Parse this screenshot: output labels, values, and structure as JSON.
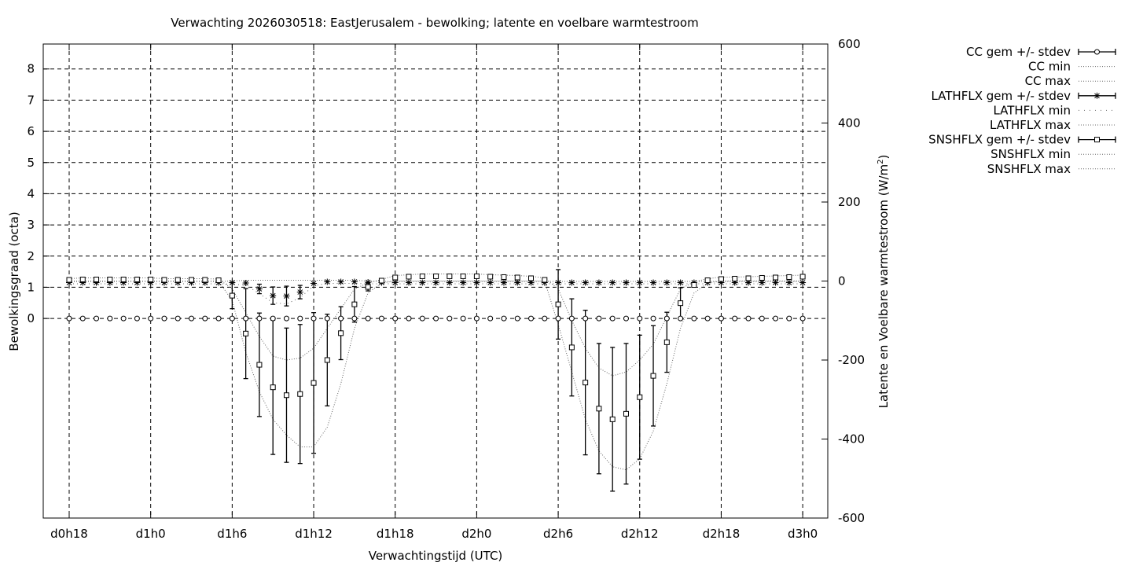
{
  "chart_data": {
    "type": "line",
    "title": "Verwachting 2026030518: EastJerusalem - bewolking; latente en voelbare warmtestroom",
    "xlabel": "Verwachtingstijd (UTC)",
    "ylabel": "Bewolkingsgraad (octa)",
    "y2label_main": "Latente en Voelbare warmtestroom (W/m",
    "y2label_sup": "2",
    "y2label_tail": ")",
    "x_ticks": [
      {
        "h": 0,
        "label": "d0h18"
      },
      {
        "h": 6,
        "label": "d1h0"
      },
      {
        "h": 12,
        "label": "d1h6"
      },
      {
        "h": 18,
        "label": "d1h12"
      },
      {
        "h": 24,
        "label": "d1h18"
      },
      {
        "h": 30,
        "label": "d2h0"
      },
      {
        "h": 36,
        "label": "d2h6"
      },
      {
        "h": 42,
        "label": "d2h12"
      },
      {
        "h": 48,
        "label": "d2h18"
      },
      {
        "h": 54,
        "label": "d3h0"
      }
    ],
    "y_ticks": [
      "0",
      "1",
      "2",
      "3",
      "4",
      "5",
      "6",
      "7",
      "8"
    ],
    "y2_ticks": [
      "-600",
      "-400",
      "-200",
      "0",
      "200",
      "400",
      "600"
    ],
    "ylim": [
      -6.4,
      8.8
    ],
    "y2lim": [
      -600,
      600
    ],
    "x_hours": [
      0,
      1,
      2,
      3,
      4,
      5,
      6,
      7,
      8,
      9,
      10,
      11,
      12,
      13,
      14,
      15,
      16,
      17,
      18,
      19,
      20,
      21,
      22,
      23,
      24,
      25,
      26,
      27,
      28,
      29,
      30,
      31,
      32,
      33,
      34,
      35,
      36,
      37,
      38,
      39,
      40,
      41,
      42,
      43,
      44,
      45,
      46,
      47,
      48,
      49,
      50,
      51,
      52,
      53,
      54
    ],
    "grid": true,
    "legend_position": "outside right, top",
    "legend": [
      {
        "label": "CC gem +/- stdev",
        "style": "errorbar-circle"
      },
      {
        "label": "CC min",
        "style": "dotted"
      },
      {
        "label": "CC max",
        "style": "dotted"
      },
      {
        "label": "LATHFLX gem +/- stdev",
        "style": "errorbar-star"
      },
      {
        "label": "LATHFLX min",
        "style": "dotted-sparse"
      },
      {
        "label": "LATHFLX max",
        "style": "dotted"
      },
      {
        "label": "SNSHFLX gem +/- stdev",
        "style": "errorbar-square"
      },
      {
        "label": "SNSHFLX min",
        "style": "dotted"
      },
      {
        "label": "SNSHFLX max",
        "style": "dotted"
      }
    ],
    "series": [
      {
        "name": "CC gem +/- stdev",
        "axis": "y1",
        "values": [
          0,
          0,
          0,
          0,
          0,
          0,
          0,
          0,
          0,
          0,
          0,
          0,
          0,
          0,
          0,
          0,
          0,
          0,
          0,
          0,
          0,
          0,
          0,
          0,
          0,
          0,
          0,
          0,
          0,
          0,
          0,
          0,
          0,
          0,
          0,
          0,
          0,
          0,
          0,
          0,
          0,
          0,
          0,
          0,
          0,
          0,
          0,
          0,
          0,
          0,
          0,
          0,
          0,
          0,
          0
        ]
      },
      {
        "name": "LATHFLX gem +/- stdev",
        "axis": "y2",
        "mean": [
          -4,
          -4,
          -4,
          -4,
          -4,
          -4,
          -4,
          -4,
          -4,
          -4,
          -4,
          -4,
          -4,
          -5,
          -20,
          -37,
          -38,
          -28,
          -6,
          -2,
          -2,
          -2,
          -3,
          -4,
          -4,
          -4,
          -4,
          -4,
          -4,
          -4,
          -4,
          -4,
          -4,
          -4,
          -4,
          -4,
          -4,
          -4,
          -4,
          -4,
          -4,
          -4,
          -4,
          -4,
          -4,
          -4,
          -4,
          -4,
          -4,
          -4,
          -4,
          -4,
          -4,
          -4,
          -4
        ],
        "stdev": [
          0,
          0,
          0,
          0,
          0,
          0,
          0,
          0,
          0,
          0,
          0,
          0,
          0,
          0,
          12,
          22,
          25,
          17,
          0,
          0,
          0,
          0,
          0,
          0,
          0,
          0,
          0,
          0,
          0,
          0,
          0,
          0,
          0,
          0,
          0,
          0,
          0,
          0,
          0,
          0,
          0,
          0,
          0,
          0,
          0,
          0,
          0,
          0,
          0,
          0,
          0,
          0,
          0,
          0,
          0
        ]
      },
      {
        "name": "LATHFLX min",
        "axis": "y2",
        "values": [
          -7,
          -7,
          -7,
          -7,
          -7,
          -7,
          -7,
          -7,
          -7,
          -7,
          -7,
          -7,
          -8,
          -10,
          -32,
          -55,
          -58,
          -42,
          -12,
          -6,
          -6,
          -6,
          -7,
          -7,
          -7,
          -7,
          -7,
          -7,
          -7,
          -7,
          -7,
          -7,
          -7,
          -7,
          -7,
          -7,
          -7,
          -7,
          -7,
          -7,
          -7,
          -7,
          -7,
          -7,
          -7,
          -7,
          -7,
          -7,
          -7,
          -7,
          -7,
          -7,
          -7,
          -7,
          -7
        ]
      },
      {
        "name": "LATHFLX max",
        "axis": "y2",
        "values": [
          -1,
          -1,
          -1,
          -1,
          -1,
          -1,
          -1,
          -1,
          -1,
          -1,
          -1,
          -1,
          0,
          2,
          2,
          2,
          2,
          2,
          2,
          2,
          2,
          2,
          0,
          -1,
          -1,
          -1,
          -1,
          -1,
          -1,
          -1,
          -1,
          -1,
          -1,
          -1,
          -1,
          -1,
          -1,
          -1,
          -1,
          -1,
          -1,
          -1,
          -1,
          -1,
          -1,
          -1,
          -1,
          -1,
          -1,
          -1,
          -1,
          -1,
          -1,
          -1,
          -1
        ]
      },
      {
        "name": "SNSHFLX gem +/- stdev",
        "axis": "y2",
        "mean": [
          3,
          4,
          4,
          4,
          4,
          4,
          4,
          3,
          3,
          3,
          3,
          2,
          -37,
          -133,
          -212,
          -269,
          -289,
          -286,
          -258,
          -200,
          -132,
          -59,
          -15,
          1,
          9,
          11,
          12,
          12,
          12,
          12,
          12,
          11,
          10,
          9,
          7,
          3,
          -59,
          -168,
          -257,
          -323,
          -350,
          -336,
          -294,
          -240,
          -155,
          -56,
          -10,
          2,
          5,
          6,
          7,
          8,
          9,
          10,
          11
        ],
        "stdev": [
          0,
          0,
          0,
          0,
          0,
          0,
          0,
          0,
          0,
          0,
          0,
          0,
          33,
          114,
          131,
          170,
          170,
          176,
          178,
          116,
          67,
          45,
          10,
          0,
          0,
          0,
          0,
          0,
          0,
          0,
          0,
          0,
          0,
          0,
          0,
          0,
          88,
          123,
          183,
          165,
          182,
          178,
          157,
          127,
          76,
          39,
          0,
          0,
          0,
          0,
          0,
          0,
          0,
          0,
          0
        ]
      },
      {
        "name": "SNSHFLX min",
        "axis": "y2",
        "values": [
          0,
          0,
          0,
          0,
          0,
          0,
          0,
          0,
          0,
          0,
          0,
          0,
          -50,
          -180,
          -280,
          -350,
          -390,
          -420,
          -420,
          -370,
          -260,
          -120,
          -30,
          -5,
          0,
          0,
          0,
          0,
          0,
          0,
          0,
          0,
          0,
          0,
          0,
          0,
          -110,
          -230,
          -350,
          -430,
          -470,
          -478,
          -450,
          -380,
          -260,
          -120,
          -30,
          -5,
          0,
          0,
          0,
          0,
          0,
          0,
          0
        ]
      },
      {
        "name": "SNSHFLX max",
        "axis": "y2",
        "values": [
          6,
          8,
          8,
          8,
          8,
          8,
          8,
          6,
          6,
          6,
          6,
          5,
          -20,
          -80,
          -140,
          -190,
          -200,
          -195,
          -170,
          -120,
          -70,
          -20,
          -5,
          4,
          14,
          16,
          18,
          18,
          18,
          18,
          18,
          16,
          15,
          14,
          12,
          8,
          -20,
          -100,
          -170,
          -220,
          -240,
          -230,
          -200,
          -160,
          -90,
          -20,
          -2,
          6,
          10,
          10,
          11,
          12,
          13,
          14,
          15
        ]
      }
    ]
  }
}
